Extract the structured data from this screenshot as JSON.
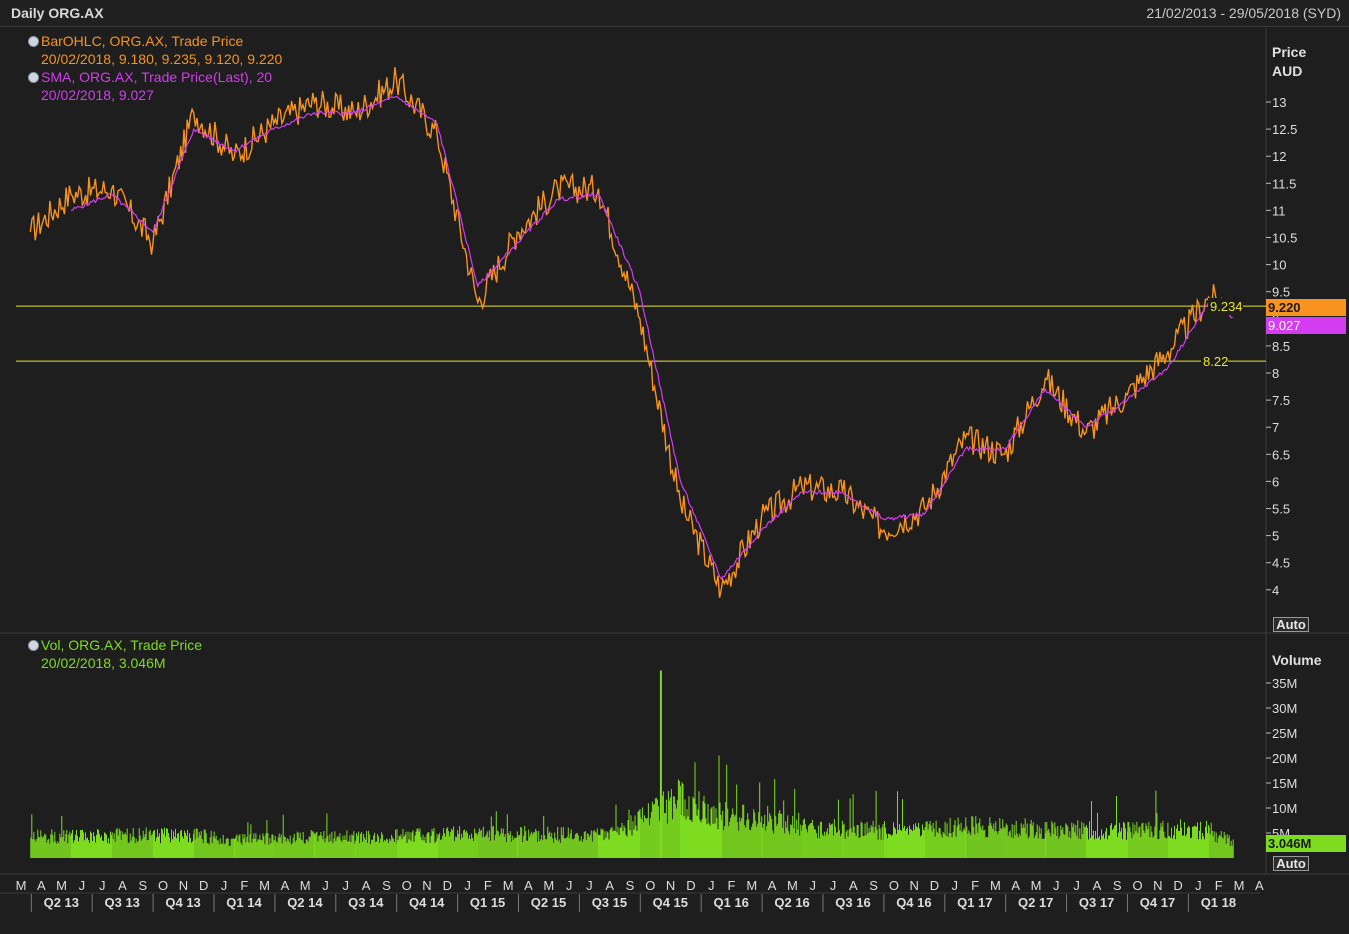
{
  "window": {
    "title": "Daily ORG.AX",
    "date_range": "21/02/2013 - 29/05/2018 (SYD)"
  },
  "legend": {
    "price": {
      "name": "BarOHLC, ORG.AX, Trade Price",
      "values": "20/02/2018, 9.180, 9.235, 9.120, 9.220",
      "color": "#f7931e"
    },
    "sma": {
      "name": "SMA, ORG.AX, Trade Price(Last),  20",
      "values": "20/02/2018, 9.027",
      "color": "#d33cf0"
    },
    "volume": {
      "name": "Vol, ORG.AX, Trade Price",
      "values": "20/02/2018, 3.046M",
      "color": "#7ddc1f"
    }
  },
  "buttons": {
    "auto": "Auto"
  },
  "axes": {
    "price_title": [
      "Price",
      "AUD"
    ],
    "volume_title": "Volume",
    "price_ticks": [
      "13",
      "12.5",
      "12",
      "11.5",
      "11",
      "10.5",
      "10",
      "9.5",
      "9",
      "8.5",
      "8",
      "7.5",
      "7",
      "6.5",
      "6",
      "5.5",
      "5",
      "4.5",
      "4"
    ],
    "volume_ticks": [
      "35M",
      "30M",
      "25M",
      "20M",
      "15M",
      "10M",
      "5M"
    ],
    "month_labels": [
      "M",
      "A",
      "M",
      "J",
      "J",
      "A",
      "S",
      "O",
      "N",
      "D",
      "J",
      "F",
      "M",
      "A",
      "M",
      "J",
      "J",
      "A",
      "S",
      "O",
      "N",
      "D",
      "J",
      "F",
      "M",
      "A",
      "M",
      "J",
      "J",
      "A",
      "S",
      "O",
      "N",
      "D",
      "J",
      "F",
      "M",
      "A",
      "M",
      "J",
      "J",
      "A",
      "S",
      "O",
      "N",
      "D",
      "J",
      "F",
      "M",
      "A",
      "M",
      "J",
      "J",
      "A",
      "S",
      "O",
      "N",
      "D",
      "J",
      "F",
      "M",
      "A",
      "M",
      "J",
      "J",
      "A",
      "S",
      "O",
      "N",
      "D",
      "J",
      "F",
      "M",
      "A",
      "M"
    ],
    "quarter_labels": [
      "Q2 13",
      "Q3 13",
      "Q4 13",
      "Q1 14",
      "Q2 14",
      "Q3 14",
      "Q4 14",
      "Q1 15",
      "Q2 15",
      "Q3 15",
      "Q4 15",
      "Q1 16",
      "Q2 16",
      "Q3 16",
      "Q4 16",
      "Q1 17",
      "Q2 17",
      "Q3 17",
      "Q4 17",
      "Q1 18"
    ]
  },
  "tags": {
    "last_price": "9.220",
    "sma_last": "9.027",
    "volume_last": "3.046M",
    "hline_high_label": "9.234",
    "hline_low_label": "8.22"
  },
  "colors": {
    "price": "#f7931e",
    "sma": "#d33cf0",
    "volume": "#7ddc1f",
    "hline": "#e6e62a",
    "background": "#1e1e1e",
    "grid": "#3a3a3a"
  },
  "chart_data": [
    {
      "type": "line",
      "title": "Daily ORG.AX",
      "ylabel": "Price AUD",
      "ylim": [
        3.5,
        13.6
      ],
      "grid": false,
      "legend_position": "top-left",
      "x": [
        "2013-03",
        "2013-05",
        "2013-07",
        "2013-09",
        "2013-11",
        "2014-01",
        "2014-03",
        "2014-05",
        "2014-07",
        "2014-09",
        "2014-11",
        "2015-01",
        "2015-03",
        "2015-05",
        "2015-07",
        "2015-09",
        "2015-11",
        "2016-01",
        "2016-03",
        "2016-05",
        "2016-07",
        "2016-09",
        "2016-11",
        "2017-01",
        "2017-03",
        "2017-05",
        "2017-07",
        "2017-09",
        "2017-11",
        "2018-01",
        "2018-02-20"
      ],
      "series": [
        {
          "name": "BarOHLC, ORG.AX, Trade Price",
          "values": [
            10.6,
            11.3,
            11.4,
            10.4,
            12.8,
            12.0,
            12.6,
            13.0,
            12.8,
            13.4,
            12.4,
            9.3,
            10.6,
            11.4,
            11.4,
            9.0,
            5.6,
            4.0,
            5.3,
            5.9,
            5.8,
            5.1,
            5.5,
            6.8,
            6.5,
            7.9,
            6.9,
            7.6,
            8.4,
            9.4,
            9.22
          ]
        },
        {
          "name": "SMA, ORG.AX, Trade Price(Last),  20",
          "values": [
            null,
            11.0,
            11.3,
            10.6,
            12.5,
            12.1,
            12.5,
            12.8,
            12.8,
            13.1,
            12.6,
            9.6,
            10.4,
            11.2,
            11.3,
            9.5,
            6.0,
            4.2,
            5.1,
            5.8,
            5.8,
            5.3,
            5.4,
            6.6,
            6.6,
            7.7,
            7.0,
            7.5,
            8.1,
            9.3,
            9.027
          ]
        }
      ],
      "horizontal_lines": [
        9.234,
        8.22
      ]
    },
    {
      "type": "bar",
      "title": "Vol, ORG.AX, Trade Price",
      "ylabel": "Volume",
      "ylim": [
        0,
        39
      ],
      "units": "M",
      "x": [
        "2013-03",
        "2013-05",
        "2013-07",
        "2013-09",
        "2013-11",
        "2014-01",
        "2014-03",
        "2014-05",
        "2014-07",
        "2014-09",
        "2014-11",
        "2015-01",
        "2015-03",
        "2015-05",
        "2015-07",
        "2015-09",
        "2015-11",
        "2016-01",
        "2016-03",
        "2016-05",
        "2016-07",
        "2016-09",
        "2016-11",
        "2017-01",
        "2017-03",
        "2017-05",
        "2017-07",
        "2017-09",
        "2017-11",
        "2018-01",
        "2018-02-20"
      ],
      "series": [
        {
          "name": "Vol, ORG.AX, Trade Price",
          "values": [
            4.5,
            4.2,
            4.4,
            4.6,
            4.5,
            3.5,
            4.0,
            4.2,
            4.1,
            4.3,
            4.5,
            5.0,
            4.8,
            4.6,
            4.5,
            7.5,
            12.0,
            8.5,
            8.0,
            6.0,
            5.8,
            5.5,
            5.6,
            6.5,
            6.0,
            5.8,
            5.6,
            5.4,
            5.8,
            5.5,
            3.046
          ]
        }
      ],
      "peak": {
        "x": "2015-10",
        "value": 37.5
      }
    }
  ]
}
